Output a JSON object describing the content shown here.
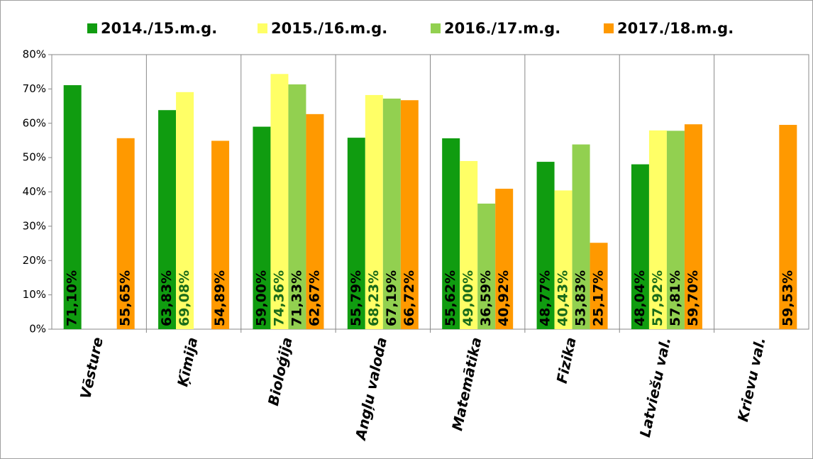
{
  "chart_data": {
    "type": "bar",
    "categories": [
      "Vēsture",
      "Ķīmija",
      "Bioloģija",
      "Angļu valoda",
      "Matemātika",
      "Fizika",
      "Latviešu val.",
      "Krievu val."
    ],
    "series": [
      {
        "name": "2014./15.m.g.",
        "color": "#109c10",
        "label_color": "#000000",
        "values": [
          71.1,
          63.83,
          59.0,
          55.79,
          55.62,
          48.77,
          48.04,
          null
        ],
        "value_labels": [
          "71,10%",
          "63,83%",
          "59,00%",
          "55,79%",
          "55,62%",
          "48,77%",
          "48,04%",
          null
        ]
      },
      {
        "name": "2015./16.m.g.",
        "color": "#ffff66",
        "label_color": "#1a6b1a",
        "values": [
          null,
          69.08,
          74.36,
          68.23,
          49.0,
          40.43,
          57.92,
          null
        ],
        "value_labels": [
          null,
          "69,08%",
          "74,36%",
          "68,23%",
          "49,00%",
          "40,43%",
          "57,92%",
          null
        ]
      },
      {
        "name": "2016./17.m.g.",
        "color": "#92d050",
        "label_color": "#000000",
        "values": [
          null,
          null,
          71.33,
          67.19,
          36.59,
          53.83,
          57.81,
          null
        ],
        "value_labels": [
          null,
          null,
          "71,33%",
          "67,19%",
          "36,59%",
          "53,83%",
          "57,81%",
          null
        ]
      },
      {
        "name": "2017./18.m.g.",
        "color": "#ff9900",
        "label_color": "#000000",
        "values": [
          55.65,
          54.89,
          62.67,
          66.72,
          40.92,
          25.17,
          59.7,
          59.53
        ],
        "value_labels": [
          "55,65%",
          "54,89%",
          "62,67%",
          "66,72%",
          "40,92%",
          "25,17%",
          "59,70%",
          "59,53%"
        ]
      }
    ],
    "ylim": [
      0,
      80
    ],
    "yticks": [
      {
        "value": 0,
        "label": "0%"
      },
      {
        "value": 10,
        "label": "10%"
      },
      {
        "value": 20,
        "label": "20%"
      },
      {
        "value": 30,
        "label": "30%"
      },
      {
        "value": 40,
        "label": "40%"
      },
      {
        "value": 50,
        "label": "50%"
      },
      {
        "value": 60,
        "label": "60%"
      },
      {
        "value": 70,
        "label": "70%"
      },
      {
        "value": 80,
        "label": "80%"
      }
    ],
    "legend": "top",
    "category_separators": true
  }
}
